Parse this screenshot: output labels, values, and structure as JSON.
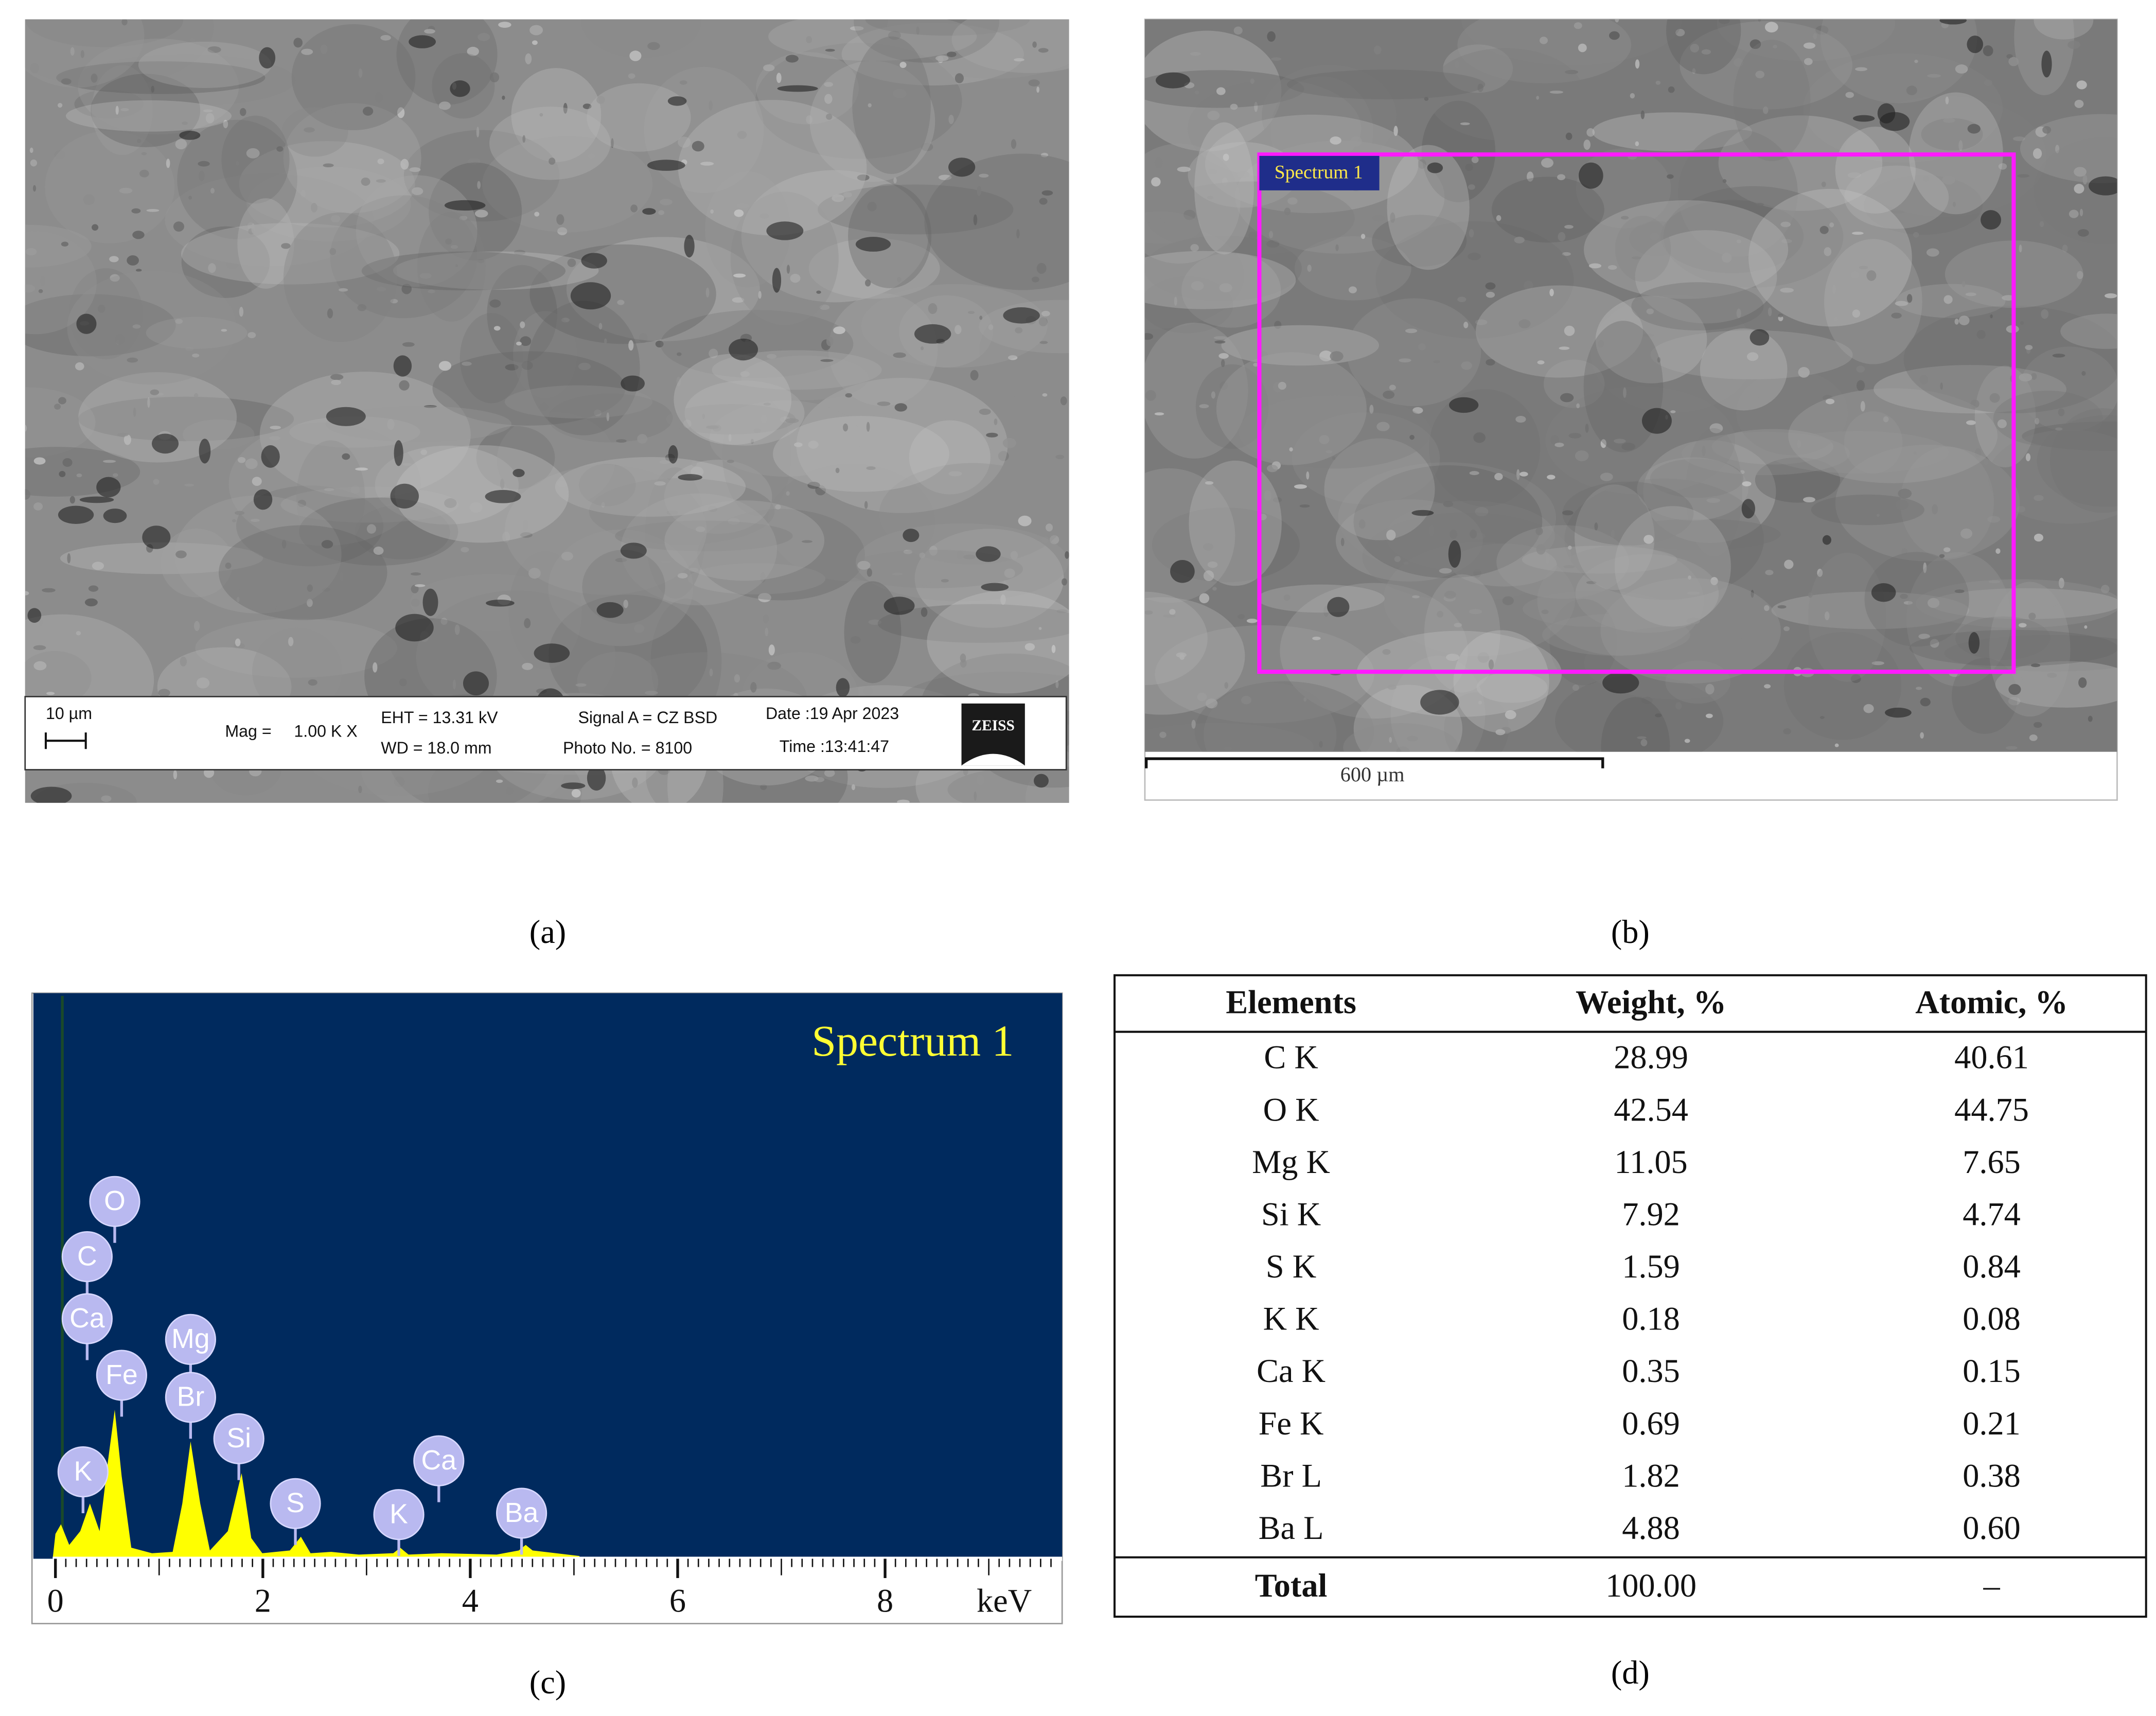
{
  "panel_labels": [
    "(a)",
    "(b)",
    "(c)",
    "(d)"
  ],
  "sem_a": {
    "scale": "10 µm",
    "mag_label": "Mag =",
    "mag_value": "1.00 K X",
    "eht": "EHT = 13.31 kV",
    "wd": "WD = 18.0 mm",
    "signal": "Signal A = CZ BSD",
    "photo": "Photo No. = 8100",
    "date": "Date :19 Apr 2023",
    "time": "Time :13:41:47",
    "logo": "ZEISS"
  },
  "sem_b": {
    "region_label": "Spectrum 1",
    "scale": "600 µm"
  },
  "spectrum": {
    "title": "Spectrum 1",
    "peak_labels": [
      "O",
      "C",
      "Ca",
      "Mg",
      "Fe",
      "Br",
      "Si",
      "K",
      "Ca",
      "S",
      "K",
      "Ba"
    ],
    "axis_ticks": [
      0,
      2,
      4,
      6,
      8
    ],
    "axis_unit": "keV"
  },
  "table": {
    "header": [
      "Elements",
      "Weight, %",
      "Atomic, %"
    ],
    "rows": [
      [
        "C K",
        "28.99",
        "40.61"
      ],
      [
        "O K",
        "42.54",
        "44.75"
      ],
      [
        "Mg K",
        "11.05",
        "7.65"
      ],
      [
        "Si K",
        "7.92",
        "4.74"
      ],
      [
        "S K",
        "1.59",
        "0.84"
      ],
      [
        "K K",
        "0.18",
        "0.08"
      ],
      [
        "Ca K",
        "0.35",
        "0.15"
      ],
      [
        "Fe K",
        "0.69",
        "0.21"
      ],
      [
        "Br L",
        "1.82",
        "0.38"
      ],
      [
        "Ba L",
        "4.88",
        "0.60"
      ]
    ],
    "total": [
      "Total",
      "100.00",
      "–"
    ]
  }
}
